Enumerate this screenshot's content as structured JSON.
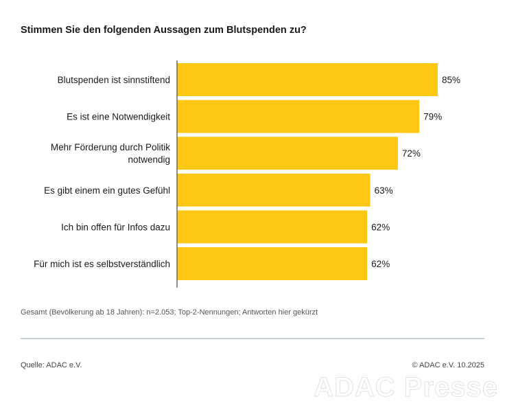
{
  "chart_data": {
    "type": "bar",
    "orientation": "horizontal",
    "title": "Stimmen Sie den folgenden Aussagen zum Blutspenden zu?",
    "categories": [
      [
        "Blutspenden ist sinnstiftend"
      ],
      [
        "Es ist eine Notwendigkeit"
      ],
      [
        "Mehr Förderung durch Politik",
        "notwendig"
      ],
      [
        "Es gibt einem ein gutes Gefühl"
      ],
      [
        "Ich bin offen für Infos dazu"
      ],
      [
        "Für mich ist es selbstverständlich"
      ]
    ],
    "values": [
      85,
      79,
      72,
      63,
      62,
      62
    ],
    "value_labels": [
      "85%",
      "79%",
      "72%",
      "63%",
      "62%",
      "62%"
    ],
    "xlim": [
      0,
      100
    ],
    "color": "#fdc814",
    "grid": false
  },
  "footnote": "Gesamt (Bevölkerung ab 18 Jahren): n=2.053; Top-2-Nennungen; Antworten hier gekürzt",
  "source": "Quelle: ADAC e.V.",
  "copyright": "© ADAC e.V. 10.2025",
  "watermark": "ADAC Presse"
}
